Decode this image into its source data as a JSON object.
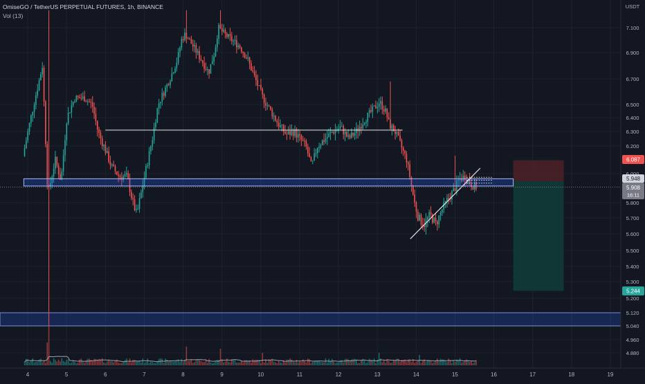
{
  "header": {
    "title": "OmiseGO / TetherUS PERPETUAL FUTURES, 1h, BINANCE",
    "indicator": "Vol (13)"
  },
  "colors": {
    "background": "#131722",
    "grid": "#1e222d",
    "up": "#26a69a",
    "down": "#ef5350",
    "text": "#b2b5be",
    "zone": "#2962ff",
    "stop_zone": "#4a2027",
    "target_zone": "#113a37",
    "volume_ma": "#9aa0ab"
  },
  "chart_data": {
    "type": "candlestick",
    "symbol": "OmiseGO / TetherUS PERPETUAL FUTURES",
    "interval": "1h",
    "exchange": "BINANCE",
    "y_axis": {
      "currency_label": "USDT",
      "ticks": [
        "7.100",
        "6.900",
        "6.700",
        "6.500",
        "6.400",
        "6.300",
        "6.200",
        "6.000",
        "5.800",
        "5.700",
        "5.600",
        "5.500",
        "5.400",
        "5.300",
        "5.200",
        "5.120",
        "5.040",
        "4.960",
        "4.880"
      ],
      "range": [
        4.8,
        7.24
      ]
    },
    "x_axis": {
      "ticks": [
        "4",
        "5",
        "6",
        "7",
        "8",
        "9",
        "10",
        "11",
        "12",
        "13",
        "14",
        "15",
        "16",
        "17",
        "18",
        "19"
      ]
    },
    "price_badges": {
      "stop": "6.087",
      "ref": "5.948",
      "last": "5.908",
      "countdown": "16:11",
      "target": "5.244"
    },
    "levels": [
      {
        "name": "resistance-line",
        "value": 6.31,
        "from_day": 6.0,
        "to_day": 13.65
      },
      {
        "name": "support-band",
        "low": 5.915,
        "high": 5.965,
        "from_day": 3.9,
        "to_day": 16.5
      },
      {
        "name": "demand-zone",
        "low": 5.04,
        "high": 5.12,
        "from_day": 3.3,
        "to_day": 19.9
      }
    ],
    "trendline": {
      "start": [
        13.85,
        5.57
      ],
      "end": [
        15.65,
        6.04
      ]
    },
    "position": {
      "entry": 5.948,
      "stop": 6.087,
      "target": 5.244,
      "from_day": 16.5,
      "to_day": 17.8
    },
    "anchors": [
      [
        3.9,
        6.1
      ],
      [
        4.42,
        6.8
      ],
      [
        4.56,
        5.85
      ],
      [
        4.75,
        6.1
      ],
      [
        4.9,
        5.95
      ],
      [
        5.05,
        6.4
      ],
      [
        5.25,
        6.55
      ],
      [
        5.5,
        6.55
      ],
      [
        5.7,
        6.5
      ],
      [
        5.85,
        6.3
      ],
      [
        6.0,
        6.2
      ],
      [
        6.2,
        6.05
      ],
      [
        6.4,
        5.98
      ],
      [
        6.6,
        5.98
      ],
      [
        6.75,
        5.8
      ],
      [
        6.85,
        5.72
      ],
      [
        6.95,
        5.85
      ],
      [
        7.1,
        6.05
      ],
      [
        7.25,
        6.25
      ],
      [
        7.4,
        6.5
      ],
      [
        7.55,
        6.6
      ],
      [
        7.7,
        6.7
      ],
      [
        7.9,
        6.85
      ],
      [
        8.0,
        7.0
      ],
      [
        8.1,
        7.05
      ],
      [
        8.3,
        6.95
      ],
      [
        8.5,
        6.85
      ],
      [
        8.7,
        6.75
      ],
      [
        8.85,
        6.9
      ],
      [
        8.95,
        7.1
      ],
      [
        9.1,
        7.05
      ],
      [
        9.3,
        7.0
      ],
      [
        9.5,
        6.95
      ],
      [
        9.7,
        6.85
      ],
      [
        9.9,
        6.7
      ],
      [
        10.1,
        6.55
      ],
      [
        10.3,
        6.45
      ],
      [
        10.5,
        6.35
      ],
      [
        10.7,
        6.28
      ],
      [
        10.9,
        6.3
      ],
      [
        11.05,
        6.25
      ],
      [
        11.2,
        6.2
      ],
      [
        11.35,
        6.05
      ],
      [
        11.5,
        6.2
      ],
      [
        11.7,
        6.25
      ],
      [
        11.9,
        6.3
      ],
      [
        12.1,
        6.33
      ],
      [
        12.3,
        6.25
      ],
      [
        12.5,
        6.3
      ],
      [
        12.7,
        6.38
      ],
      [
        12.9,
        6.45
      ],
      [
        13.1,
        6.52
      ],
      [
        13.25,
        6.45
      ],
      [
        13.35,
        6.35
      ],
      [
        13.5,
        6.3
      ],
      [
        13.65,
        6.2
      ],
      [
        13.8,
        6.1
      ],
      [
        13.9,
        5.95
      ],
      [
        14.0,
        5.8
      ],
      [
        14.1,
        5.7
      ],
      [
        14.25,
        5.66
      ],
      [
        14.4,
        5.72
      ],
      [
        14.55,
        5.66
      ],
      [
        14.7,
        5.75
      ],
      [
        14.85,
        5.82
      ],
      [
        15.0,
        5.88
      ],
      [
        15.15,
        5.96
      ],
      [
        15.3,
        5.98
      ],
      [
        15.45,
        5.93
      ],
      [
        15.55,
        5.91
      ]
    ],
    "spikes": [
      {
        "day": 4.56,
        "high": 7.24,
        "low": 5.05
      },
      {
        "day": 8.1,
        "high": 7.24
      },
      {
        "day": 8.95,
        "high": 7.24
      },
      {
        "day": 13.35,
        "high": 6.68
      },
      {
        "day": 15.0,
        "high": 6.13
      }
    ],
    "volume_spikes": [
      {
        "day": 4.56,
        "value": 1.0
      },
      {
        "day": 4.5,
        "value": 0.55
      },
      {
        "day": 8.1,
        "value": 0.45
      },
      {
        "day": 8.95,
        "value": 0.4
      },
      {
        "day": 10.05,
        "value": 0.3
      },
      {
        "day": 13.05,
        "value": 0.3
      },
      {
        "day": 14.1,
        "value": 0.25
      }
    ]
  }
}
